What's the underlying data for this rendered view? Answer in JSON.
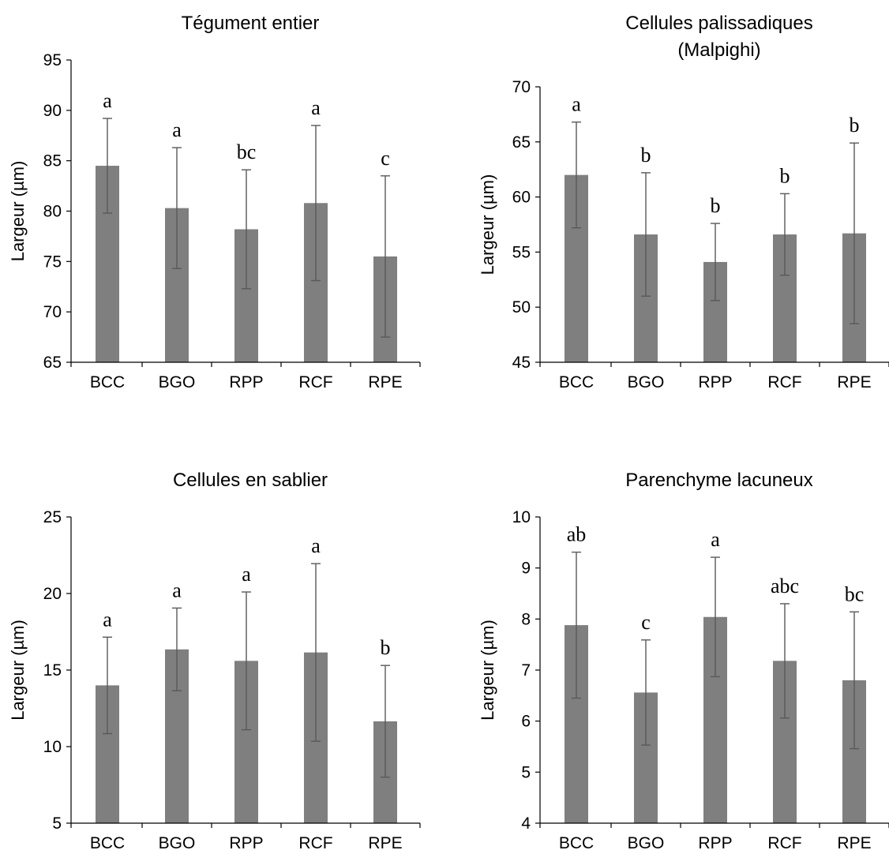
{
  "colors": {
    "bar": "#7f7f7f",
    "error_bar": "#595959",
    "axis": "#000000",
    "text": "#000000"
  },
  "chart_data": [
    {
      "type": "bar",
      "title": [
        "Tégument entier"
      ],
      "ylabel": "Largeur (µm)",
      "xlabel": "",
      "ylim": [
        65,
        95
      ],
      "yticks": [
        65,
        70,
        75,
        80,
        85,
        90,
        95
      ],
      "categories": [
        "BCC",
        "BGO",
        "RPP",
        "RCF",
        "RPE"
      ],
      "values": [
        84.5,
        80.3,
        78.2,
        80.8,
        75.5
      ],
      "error": [
        4.7,
        6.0,
        5.9,
        7.7,
        8.0
      ],
      "letters": [
        "a",
        "a",
        "bc",
        "a",
        "c"
      ],
      "grid": false,
      "legend": "none"
    },
    {
      "type": "bar",
      "title": [
        "Cellules palissadiques",
        "(Malpighi)"
      ],
      "ylabel": "Largeur (µm)",
      "xlabel": "",
      "ylim": [
        45,
        70
      ],
      "yticks": [
        45,
        50,
        55,
        60,
        65,
        70
      ],
      "categories": [
        "BCC",
        "BGO",
        "RPP",
        "RCF",
        "RPE"
      ],
      "values": [
        62.0,
        56.6,
        54.1,
        56.6,
        56.7
      ],
      "error": [
        4.8,
        5.6,
        3.5,
        3.7,
        8.2
      ],
      "letters": [
        "a",
        "b",
        "b",
        "b",
        "b"
      ],
      "grid": false,
      "legend": "none"
    },
    {
      "type": "bar",
      "title": [
        "Cellules en sablier"
      ],
      "ylabel": "Largeur (µm)",
      "xlabel": "",
      "ylim": [
        5,
        25
      ],
      "yticks": [
        5,
        10,
        15,
        20,
        25
      ],
      "categories": [
        "BCC",
        "BGO",
        "RPP",
        "RCF",
        "RPE"
      ],
      "values": [
        14.0,
        16.35,
        15.6,
        16.15,
        11.65
      ],
      "error": [
        3.15,
        2.7,
        4.5,
        5.8,
        3.65
      ],
      "letters": [
        "a",
        "a",
        "a",
        "a",
        "b"
      ],
      "grid": false,
      "legend": "none"
    },
    {
      "type": "bar",
      "title": [
        "Parenchyme lacuneux"
      ],
      "ylabel": "Largeur (µm)",
      "xlabel": "",
      "ylim": [
        4,
        10
      ],
      "yticks": [
        4,
        5,
        6,
        7,
        8,
        9,
        10
      ],
      "categories": [
        "BCC",
        "BGO",
        "RPP",
        "RCF",
        "RPE"
      ],
      "values": [
        7.88,
        6.56,
        8.04,
        7.18,
        6.8
      ],
      "error": [
        1.43,
        1.03,
        1.17,
        1.12,
        1.34
      ],
      "letters": [
        "ab",
        "c",
        "a",
        "abc",
        "bc"
      ],
      "grid": false,
      "legend": "none"
    }
  ]
}
